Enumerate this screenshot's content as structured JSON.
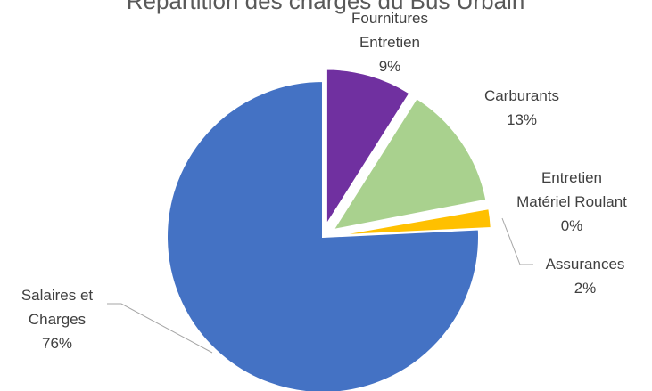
{
  "chart_data": {
    "type": "pie",
    "title": "Répartition des charges du Bus Urbain",
    "slices": [
      {
        "name": "Fournitures Entretien",
        "label_lines": [
          "Fournitures",
          "Entretien"
        ],
        "value": 9,
        "value_label": "9%",
        "color": "#7030a0",
        "exploded": true
      },
      {
        "name": "Carburants",
        "label_lines": [
          "Carburants"
        ],
        "value": 13,
        "value_label": "13%",
        "color": "#a9d18e",
        "exploded": true
      },
      {
        "name": "Entretien Matériel Roulant",
        "label_lines": [
          "Entretien",
          "Matériel Roulant"
        ],
        "value": 0.3,
        "value_label": "0%",
        "color": "#ffffff",
        "exploded": true
      },
      {
        "name": "Assurances",
        "label_lines": [
          "Assurances"
        ],
        "value": 2,
        "value_label": "2%",
        "color": "#ffc000",
        "exploded": true
      },
      {
        "name": "Salaires et Charges",
        "label_lines": [
          "Salaires et",
          "Charges"
        ],
        "value": 76,
        "value_label": "76%",
        "color": "#4472c4",
        "exploded": false
      }
    ],
    "legend": "none",
    "start_angle_deg": 0,
    "direction": "clockwise"
  }
}
